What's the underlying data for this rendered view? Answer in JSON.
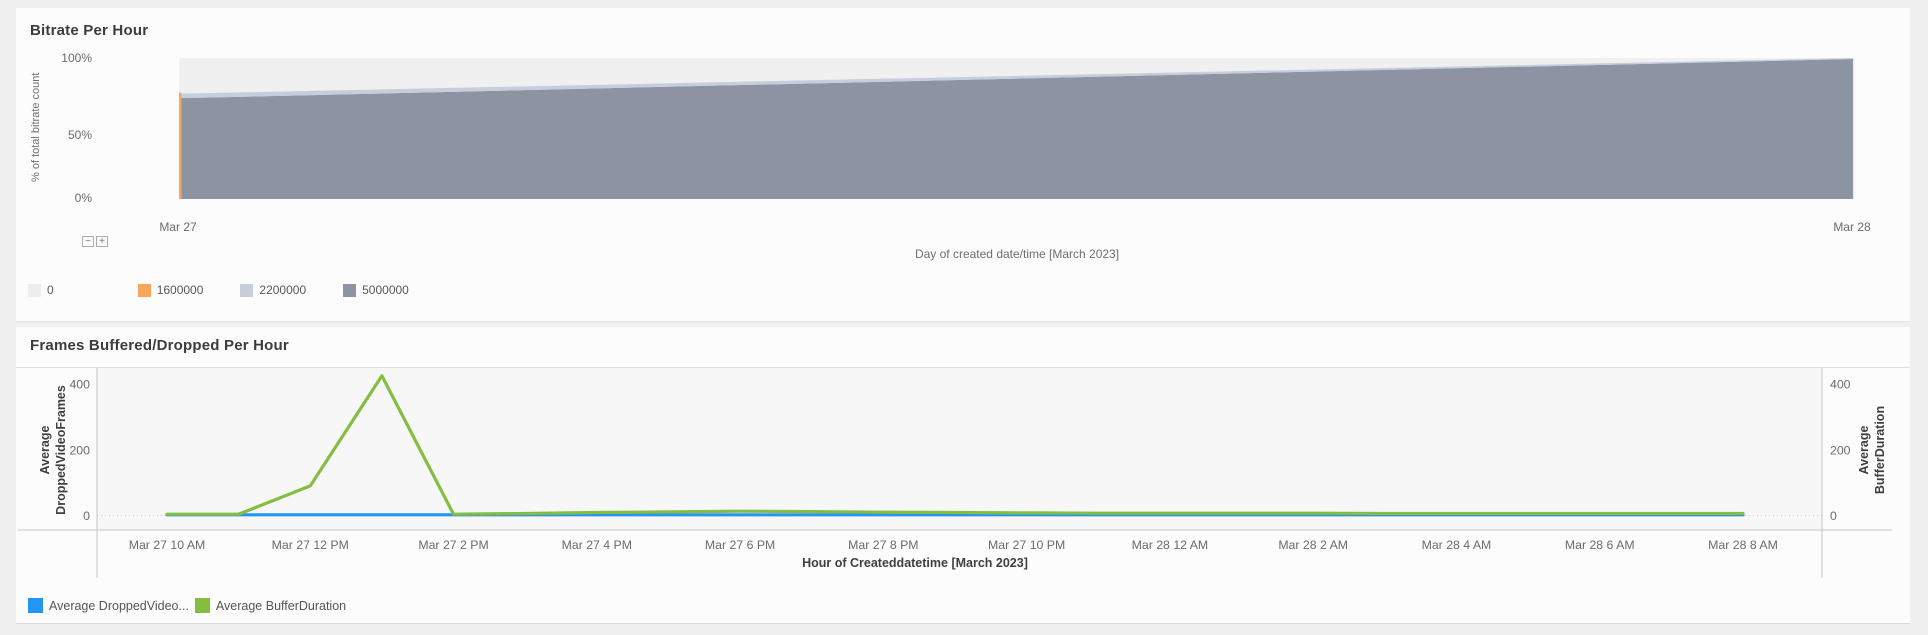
{
  "panels": {
    "bitrate": {
      "title": "Bitrate Per Hour",
      "y_axis_title": "% of total bitrate count",
      "x_axis_title": "Day of created date/time [March 2023]",
      "y_tick_labels": [
        "100%",
        "50%",
        "0%"
      ],
      "x_tick_labels": [
        "Mar 27",
        "Mar 28"
      ],
      "zoom_out_label": "−",
      "zoom_in_label": "+",
      "legend": [
        {
          "label": "0",
          "color": "#ededec"
        },
        {
          "label": "1600000",
          "color": "#f9a65a"
        },
        {
          "label": "2200000",
          "color": "#c6cedc"
        },
        {
          "label": "5000000",
          "color": "#8c94a3"
        }
      ]
    },
    "frames": {
      "title": "Frames Buffered/Dropped Per Hour",
      "x_axis_title": "Hour of Createddatetime [March 2023]",
      "left_axis_title_lines": [
        "Average",
        "DroppedVideoFrames"
      ],
      "right_axis_title_lines": [
        "Average",
        "BufferDuration"
      ],
      "legend": [
        {
          "label": "Average DroppedVideo...",
          "color": "#2196f3"
        },
        {
          "label": "Average BufferDuration",
          "color": "#85bd42"
        }
      ]
    }
  },
  "chart_data": [
    {
      "type": "area",
      "title": "Bitrate Per Hour",
      "stacked": true,
      "x": [
        "Mar 27",
        "Mar 28"
      ],
      "xlabel": "Day of created date/time [March 2023]",
      "ylabel": "% of total bitrate count",
      "ylim": [
        0,
        100
      ],
      "y_tick_labels": [
        "0%",
        "50%",
        "100%"
      ],
      "series": [
        {
          "name": "5000000",
          "color": "#8c94a3",
          "values": [
            71.5,
            99.3
          ]
        },
        {
          "name": "2200000",
          "color": "#c6cedc",
          "values": [
            3.2,
            0.7
          ]
        },
        {
          "name": "1600000",
          "color": "#f9a65a",
          "values": [
            0.6,
            0
          ]
        },
        {
          "name": "0",
          "color": "#ededec",
          "values": [
            24.7,
            0
          ]
        }
      ]
    },
    {
      "type": "line",
      "title": "Frames Buffered/Dropped Per Hour",
      "xlabel": "Hour of Createddatetime [March 2023]",
      "x_interval": "hourly from Mar 27 10 AM to Mar 28 8 AM",
      "x_tick_labels": [
        "Mar 27 10 AM",
        "Mar 27 12 PM",
        "Mar 27 2 PM",
        "Mar 27 4 PM",
        "Mar 27 6 PM",
        "Mar 27 8 PM",
        "Mar 27 10 PM",
        "Mar 28 12 AM",
        "Mar 28 2 AM",
        "Mar 28 4 AM",
        "Mar 28 6 AM",
        "Mar 28 8 AM"
      ],
      "ylim": [
        0,
        440
      ],
      "y_ticks": [
        0,
        200,
        400
      ],
      "legend_position": "bottom-left",
      "grid": "zero-line-only",
      "series": [
        {
          "name": "Average DroppedVideoFrames",
          "axis": "left",
          "color": "#2196f3",
          "values": [
            2,
            2,
            2,
            2,
            2,
            2,
            2,
            2,
            2,
            2,
            2,
            2,
            2,
            2,
            2,
            2,
            2,
            2,
            2,
            2,
            2,
            2,
            2
          ]
        },
        {
          "name": "Average BufferDuration",
          "axis": "right",
          "color": "#85bd42",
          "values": [
            4,
            4,
            90,
            425,
            4,
            6,
            9,
            11,
            13,
            12,
            10,
            9,
            8,
            7,
            7,
            7,
            7,
            6,
            6,
            6,
            6,
            6,
            6
          ]
        }
      ]
    }
  ]
}
